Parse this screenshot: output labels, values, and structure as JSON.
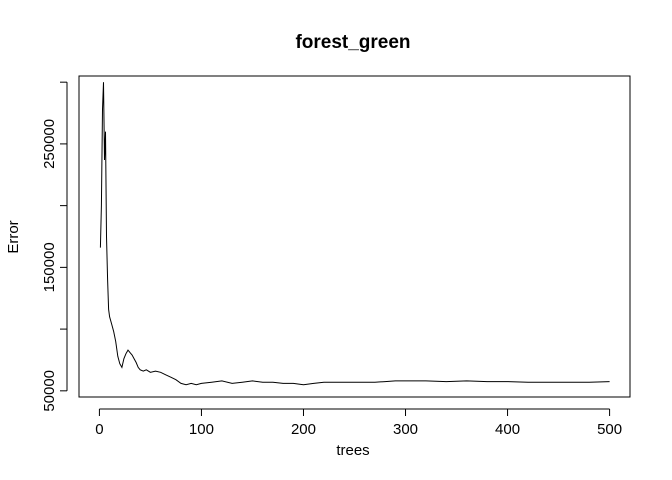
{
  "chart_data": {
    "type": "line",
    "title": "forest_green",
    "xlabel": "trees",
    "ylabel": "Error",
    "xlim": [
      -20,
      520
    ],
    "ylim": [
      45000,
      305000
    ],
    "xticks": [
      0,
      100,
      200,
      300,
      400,
      500
    ],
    "yticks": [
      50000,
      150000,
      250000
    ],
    "ytick_labels_shown": [
      "50000",
      "150000",
      "250000"
    ],
    "xtick_labels_shown": [
      "0",
      "100",
      "200",
      "300",
      "400",
      "500"
    ],
    "grid": false,
    "legend": "none",
    "line_color": "#000000",
    "series": [
      {
        "x": [
          1,
          2,
          3,
          4,
          5,
          6,
          7,
          8,
          9,
          10,
          12,
          14,
          16,
          18,
          20,
          22,
          24,
          26,
          28,
          30,
          32,
          34,
          36,
          38,
          40,
          43,
          46,
          50,
          55,
          60,
          65,
          70,
          75,
          80,
          85,
          90,
          95,
          100,
          110,
          120,
          130,
          140,
          150,
          160,
          170,
          180,
          190,
          200,
          210,
          220,
          230,
          240,
          250,
          260,
          270,
          280,
          290,
          300,
          320,
          340,
          360,
          380,
          400,
          420,
          440,
          460,
          480,
          500
        ],
        "y": [
          166000,
          200000,
          278000,
          300000,
          237000,
          260000,
          175000,
          140000,
          116000,
          110000,
          104000,
          98000,
          90000,
          78000,
          72000,
          69000,
          76000,
          80000,
          83000,
          81000,
          79000,
          76000,
          73000,
          69000,
          67000,
          66000,
          67000,
          65000,
          66000,
          65000,
          63000,
          61000,
          59000,
          56000,
          55000,
          56000,
          55000,
          56000,
          57000,
          58000,
          56000,
          57000,
          58000,
          57000,
          57000,
          56000,
          56000,
          55000,
          56000,
          57000,
          57000,
          57000,
          57000,
          57000,
          57000,
          57500,
          58000,
          58000,
          58000,
          57500,
          58000,
          57500,
          57500,
          57000,
          57000,
          57000,
          57000,
          57500
        ]
      }
    ]
  }
}
